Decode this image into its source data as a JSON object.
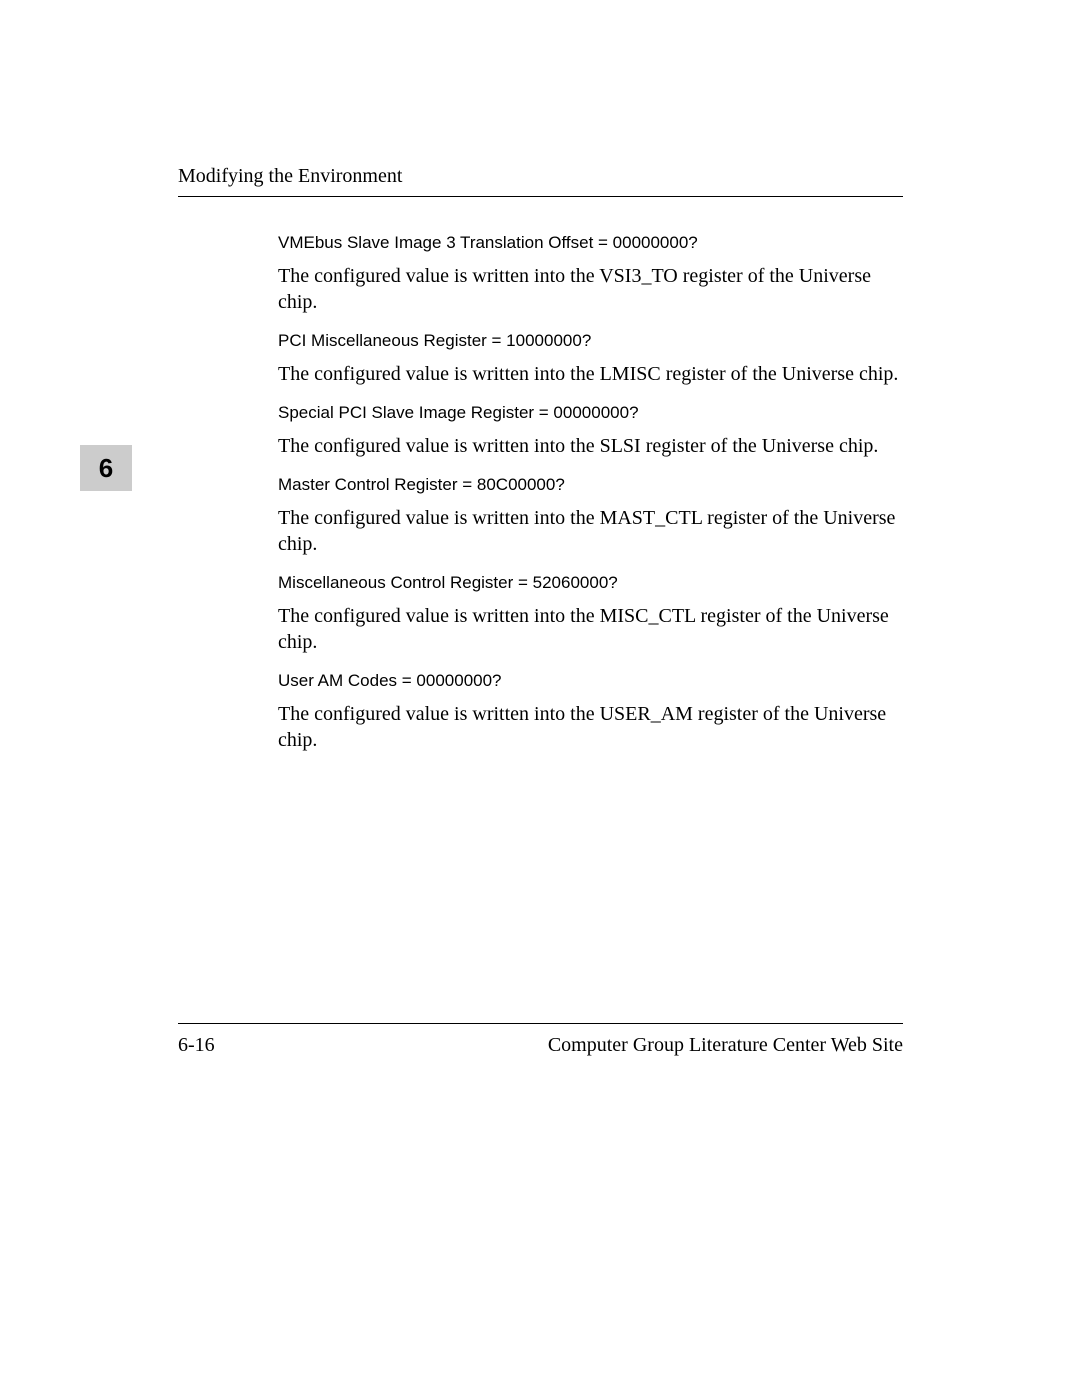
{
  "header": {
    "title": "Modifying the Environment"
  },
  "chapter_tab": "6",
  "sections": [
    {
      "prompt": "VMEbus Slave Image 3 Translation Offset = 00000000?",
      "desc": "The configured value is written into the VSI3_TO register of the Universe chip."
    },
    {
      "prompt": "PCI Miscellaneous Register = 10000000?",
      "desc": "The configured value is written into the LMISC register of the Universe chip."
    },
    {
      "prompt": "Special PCI Slave Image Register = 00000000?",
      "desc": "The configured value is written into the SLSI register of the Universe chip."
    },
    {
      "prompt": "Master Control Register = 80C00000?",
      "desc": "The configured value is written into the MAST_CTL register of the Universe chip."
    },
    {
      "prompt": "Miscellaneous Control Register = 52060000?",
      "desc": "The configured value is written into the MISC_CTL register of the Universe chip."
    },
    {
      "prompt": "User AM Codes = 00000000?",
      "desc": "The configured value is written into the USER_AM register of the Universe chip."
    }
  ],
  "footer": {
    "page_number": "6-16",
    "right_text": "Computer Group Literature Center Web Site"
  },
  "colors": {
    "tab_background": "#cccccc",
    "text": "#000000",
    "page_background": "#ffffff"
  }
}
